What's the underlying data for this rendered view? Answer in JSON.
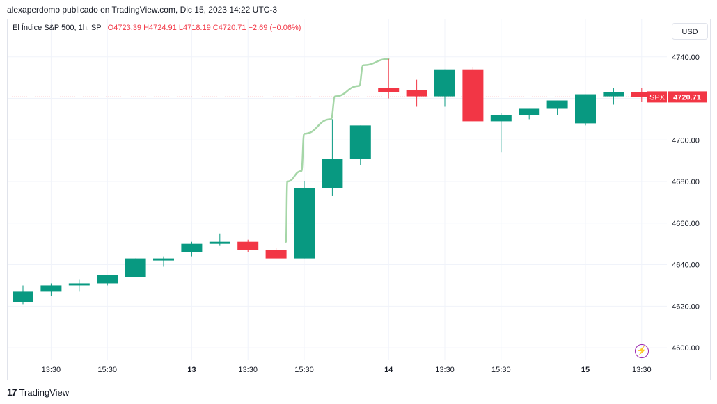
{
  "header": {
    "text": "alexaperdomo publicado en TradingView.com, Dic 15, 2023 14:22 UTC-3"
  },
  "legend": {
    "symbol": "El Índice S&P 500, 1h, SP",
    "open": "O4723.39",
    "high": "H4724.91",
    "low": "L4718.19",
    "close": "C4720.71",
    "change": "−2.69 (−0.06%)"
  },
  "currency_button": "USD",
  "price_badge": {
    "symbol": "SPX",
    "value": "4720.71"
  },
  "footer": {
    "brand": "TradingView",
    "logo_text": "17"
  },
  "colors": {
    "up": "#089981",
    "down": "#f23645",
    "line": "#a5d6a7",
    "grid": "#f0f3fa",
    "dotted": "#f23645"
  },
  "chart_data": {
    "type": "candlestick",
    "ylim": [
      4594,
      4758
    ],
    "y_ticks": [
      4600,
      4620,
      4640,
      4660,
      4680,
      4700,
      4720,
      4740
    ],
    "y_tick_labels": [
      "4600.00",
      "4620.00",
      "4640.00",
      "4660.00",
      "4680.00",
      "4700.00",
      "4720.00",
      "4740.00"
    ],
    "x_ticks": [
      {
        "label": "13:30",
        "index": 1
      },
      {
        "label": "15:30",
        "index": 3
      },
      {
        "label": "13",
        "index": 6,
        "bold": true
      },
      {
        "label": "13:30",
        "index": 8
      },
      {
        "label": "15:30",
        "index": 10
      },
      {
        "label": "14",
        "index": 13,
        "bold": true
      },
      {
        "label": "13:30",
        "index": 15
      },
      {
        "label": "15:30",
        "index": 17
      },
      {
        "label": "15",
        "index": 20,
        "bold": true
      },
      {
        "label": "13:30",
        "index": 22
      }
    ],
    "candles": [
      {
        "o": 4622,
        "h": 4630,
        "l": 4621,
        "c": 4627
      },
      {
        "o": 4627,
        "h": 4631,
        "l": 4625,
        "c": 4630
      },
      {
        "o": 4630,
        "h": 4633,
        "l": 4627,
        "c": 4631
      },
      {
        "o": 4631,
        "h": 4635,
        "l": 4630,
        "c": 4635
      },
      {
        "o": 4634,
        "h": 4643,
        "l": 4634,
        "c": 4643
      },
      {
        "o": 4642,
        "h": 4644,
        "l": 4639,
        "c": 4643
      },
      {
        "o": 4646,
        "h": 4651,
        "l": 4644,
        "c": 4650
      },
      {
        "o": 4650,
        "h": 4655,
        "l": 4649,
        "c": 4651
      },
      {
        "o": 4651,
        "h": 4652,
        "l": 4646,
        "c": 4647
      },
      {
        "o": 4647,
        "h": 4648,
        "l": 4643,
        "c": 4643
      },
      {
        "o": 4643,
        "h": 4680,
        "l": 4643,
        "c": 4677
      },
      {
        "o": 4677,
        "h": 4710,
        "l": 4673,
        "c": 4691
      },
      {
        "o": 4691,
        "h": 4707,
        "l": 4688,
        "c": 4707
      },
      {
        "o": 4725,
        "h": 4739,
        "l": 4720,
        "c": 4723
      },
      {
        "o": 4724,
        "h": 4729,
        "l": 4716,
        "c": 4721
      },
      {
        "o": 4721,
        "h": 4734,
        "l": 4716,
        "c": 4734
      },
      {
        "o": 4734,
        "h": 4735,
        "l": 4709,
        "c": 4709
      },
      {
        "o": 4709,
        "h": 4713,
        "l": 4694,
        "c": 4712
      },
      {
        "o": 4712,
        "h": 4715,
        "l": 4710,
        "c": 4715
      },
      {
        "o": 4715,
        "h": 4719,
        "l": 4712,
        "c": 4719
      },
      {
        "o": 4708,
        "h": 4722,
        "l": 4707,
        "c": 4722
      },
      {
        "o": 4721,
        "h": 4725,
        "l": 4717,
        "c": 4723
      },
      {
        "o": 4723,
        "h": 4724.91,
        "l": 4718.19,
        "c": 4720.71
      }
    ],
    "drawing_line": [
      {
        "i": 9.35,
        "v": 4651
      },
      {
        "i": 9.4,
        "v": 4680
      },
      {
        "i": 9.9,
        "v": 4685
      },
      {
        "i": 10.0,
        "v": 4703
      },
      {
        "i": 10.95,
        "v": 4710
      },
      {
        "i": 11.1,
        "v": 4721
      },
      {
        "i": 11.95,
        "v": 4726
      },
      {
        "i": 12.1,
        "v": 4736
      },
      {
        "i": 13.0,
        "v": 4739
      }
    ],
    "last_price": 4720.71
  }
}
